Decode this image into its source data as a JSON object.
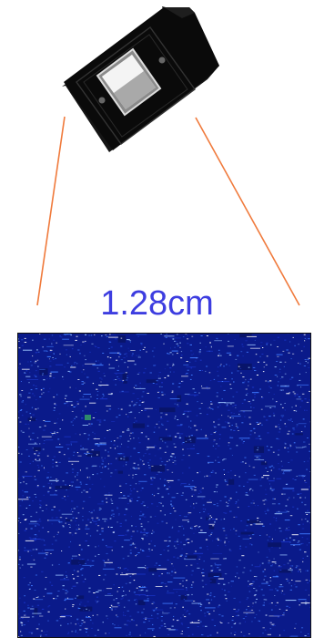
{
  "measurement": {
    "label": "1.28cm",
    "color": "#3d3de0"
  },
  "device": {
    "name": "sensor-module",
    "body_color": "#0b0b0b",
    "window_color": "#c8c8c8",
    "leader_line_color": "#f07a3c"
  },
  "sensor_image": {
    "name": "sensor-noise-capture",
    "background": "#0a1a8a",
    "speckle_colors": [
      "#ffffff",
      "#9ec7ff",
      "#3f7bff",
      "#1b36c9"
    ]
  }
}
